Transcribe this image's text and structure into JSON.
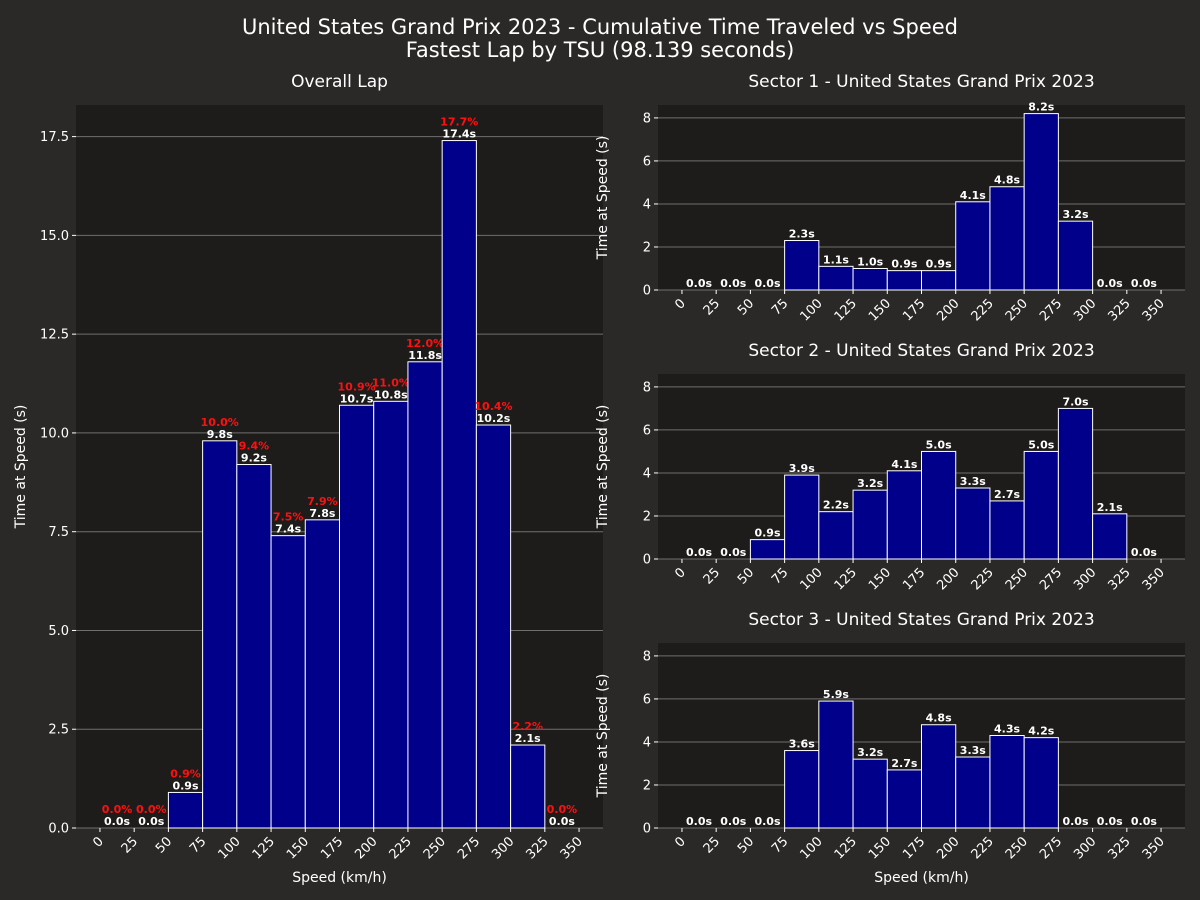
{
  "figure": {
    "title_line1": "United States Grand Prix 2023 - Cumulative Time Traveled vs Speed",
    "title_line2": "Fastest Lap by TSU (98.139 seconds)"
  },
  "colors": {
    "background": "#2b2928",
    "plot_background": "#1e1c1b",
    "bar_fill": "#00008b",
    "bar_edge": "#ffffff",
    "bar_label": "#ffffff",
    "percent_label": "#ff1010",
    "grid": "#6e6e6e",
    "text": "#ffffff"
  },
  "chart_data": [
    {
      "type": "bar",
      "title": "Overall Lap",
      "xlabel": "Speed (km/h)",
      "ylabel": "Time at Speed (s)",
      "bin_edges": [
        0,
        25,
        50,
        75,
        100,
        125,
        150,
        175,
        200,
        225,
        250,
        275,
        300,
        325,
        350
      ],
      "x_ticks": [
        0,
        25,
        50,
        75,
        100,
        125,
        150,
        175,
        200,
        225,
        250,
        275,
        300,
        325,
        350
      ],
      "y_ticks": [
        "0.0",
        "2.5",
        "5.0",
        "7.5",
        "10.0",
        "12.5",
        "15.0",
        "17.5"
      ],
      "ylim": [
        0,
        18.3
      ],
      "grid": "y",
      "values": [
        0.0,
        0.0,
        0.9,
        9.8,
        9.2,
        7.4,
        7.8,
        10.7,
        10.8,
        11.8,
        17.4,
        10.2,
        2.1,
        0.0
      ],
      "value_labels": [
        "0.0s",
        "0.0s",
        "0.9s",
        "9.8s",
        "9.2s",
        "7.4s",
        "7.8s",
        "10.7s",
        "10.8s",
        "11.8s",
        "17.4s",
        "10.2s",
        "2.1s",
        "0.0s"
      ],
      "percent_labels": [
        "0.0%",
        "0.0%",
        "0.9%",
        "10.0%",
        "9.4%",
        "7.5%",
        "7.9%",
        "10.9%",
        "11.0%",
        "12.0%",
        "17.7%",
        "10.4%",
        "2.2%",
        "0.0%"
      ]
    },
    {
      "type": "bar",
      "title": "Sector 1 - United States Grand Prix 2023",
      "xlabel": "",
      "ylabel": "Time at Speed (s)",
      "bin_edges": [
        0,
        25,
        50,
        75,
        100,
        125,
        150,
        175,
        200,
        225,
        250,
        275,
        300,
        325,
        350
      ],
      "x_ticks": [
        0,
        25,
        50,
        75,
        100,
        125,
        150,
        175,
        200,
        225,
        250,
        275,
        300,
        325,
        350
      ],
      "y_ticks": [
        "0",
        "2",
        "4",
        "6",
        "8"
      ],
      "ylim": [
        0,
        8.6
      ],
      "grid": "y",
      "values": [
        0.0,
        0.0,
        0.0,
        2.3,
        1.1,
        1.0,
        0.9,
        0.9,
        4.1,
        4.8,
        8.2,
        3.2,
        0.0,
        0.0
      ],
      "value_labels": [
        "0.0s",
        "0.0s",
        "0.0s",
        "2.3s",
        "1.1s",
        "1.0s",
        "0.9s",
        "0.9s",
        "4.1s",
        "4.8s",
        "8.2s",
        "3.2s",
        "0.0s",
        "0.0s"
      ]
    },
    {
      "type": "bar",
      "title": "Sector 2 - United States Grand Prix 2023",
      "xlabel": "",
      "ylabel": "Time at Speed (s)",
      "bin_edges": [
        0,
        25,
        50,
        75,
        100,
        125,
        150,
        175,
        200,
        225,
        250,
        275,
        300,
        325,
        350
      ],
      "x_ticks": [
        0,
        25,
        50,
        75,
        100,
        125,
        150,
        175,
        200,
        225,
        250,
        275,
        300,
        325,
        350
      ],
      "y_ticks": [
        "0",
        "2",
        "4",
        "6",
        "8"
      ],
      "ylim": [
        0,
        8.6
      ],
      "grid": "y",
      "values": [
        0.0,
        0.0,
        0.9,
        3.9,
        2.2,
        3.2,
        4.1,
        5.0,
        3.3,
        2.7,
        5.0,
        7.0,
        2.1,
        0.0
      ],
      "value_labels": [
        "0.0s",
        "0.0s",
        "0.9s",
        "3.9s",
        "2.2s",
        "3.2s",
        "4.1s",
        "5.0s",
        "3.3s",
        "2.7s",
        "5.0s",
        "7.0s",
        "2.1s",
        "0.0s"
      ]
    },
    {
      "type": "bar",
      "title": "Sector 3 - United States Grand Prix 2023",
      "xlabel": "Speed (km/h)",
      "ylabel": "Time at Speed (s)",
      "bin_edges": [
        0,
        25,
        50,
        75,
        100,
        125,
        150,
        175,
        200,
        225,
        250,
        275,
        300,
        325,
        350
      ],
      "x_ticks": [
        0,
        25,
        50,
        75,
        100,
        125,
        150,
        175,
        200,
        225,
        250,
        275,
        300,
        325,
        350
      ],
      "y_ticks": [
        "0",
        "2",
        "4",
        "6",
        "8"
      ],
      "ylim": [
        0,
        8.6
      ],
      "grid": "y",
      "values": [
        0.0,
        0.0,
        0.0,
        3.6,
        5.9,
        3.2,
        2.7,
        4.8,
        3.3,
        4.3,
        4.2,
        0.0,
        0.0,
        0.0
      ],
      "value_labels": [
        "0.0s",
        "0.0s",
        "0.0s",
        "3.6s",
        "5.9s",
        "3.2s",
        "2.7s",
        "4.8s",
        "3.3s",
        "4.3s",
        "4.2s",
        "0.0s",
        "0.0s",
        "0.0s"
      ]
    }
  ]
}
